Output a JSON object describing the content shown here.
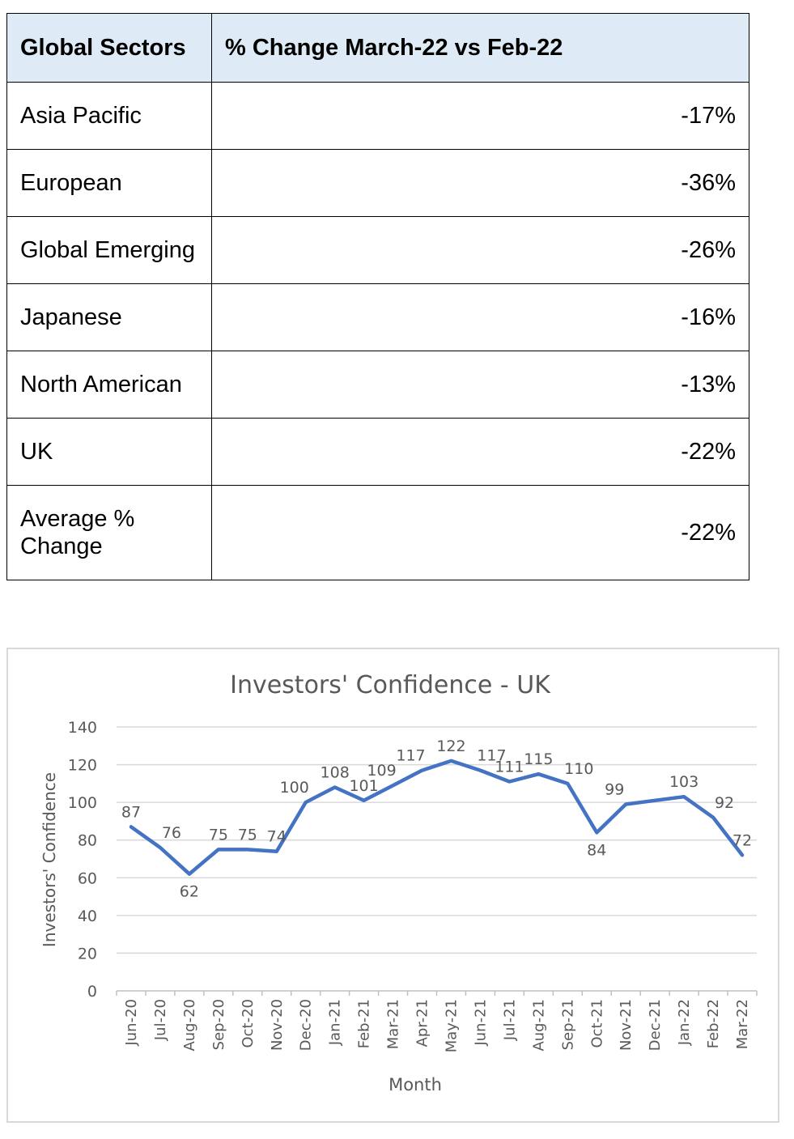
{
  "table": {
    "headers": [
      "Global Sectors",
      "% Change March-22 vs Feb-22"
    ],
    "rows": [
      {
        "sector": "Asia Pacific",
        "change": "-17%"
      },
      {
        "sector": "European",
        "change": "-36%"
      },
      {
        "sector": "Global Emerging",
        "change": "-26%"
      },
      {
        "sector": "Japanese",
        "change": "-16%"
      },
      {
        "sector": "North American",
        "change": "-13%"
      },
      {
        "sector": "UK",
        "change": "-22%"
      },
      {
        "sector": "Average % Change",
        "change": "-22%"
      }
    ]
  },
  "chart_data": {
    "type": "line",
    "title": "Investors' Confidence - UK",
    "xlabel": "Month",
    "ylabel": "Investors' Confidence",
    "ylim": [
      0,
      140
    ],
    "yticks": [
      0,
      20,
      40,
      60,
      80,
      100,
      120,
      140
    ],
    "grid": true,
    "categories": [
      "Jun-20",
      "Jul-20",
      "Aug-20",
      "Sep-20",
      "Oct-20",
      "Nov-20",
      "Dec-20",
      "Jan-21",
      "Feb-21",
      "Mar-21",
      "Apr-21",
      "May-21",
      "Jun-21",
      "Jul-21",
      "Aug-21",
      "Sep-21",
      "Oct-21",
      "Nov-21",
      "Dec-21",
      "Jan-22",
      "Feb-22",
      "Mar-22"
    ],
    "series": [
      {
        "values": [
          87,
          76,
          62,
          75,
          75,
          74,
          100,
          108,
          101,
          109,
          117,
          122,
          117,
          111,
          115,
          110,
          84,
          99,
          null,
          103,
          92,
          72
        ],
        "path_values": [
          87,
          76,
          62,
          75,
          75,
          74,
          100,
          108,
          101,
          109,
          117,
          122,
          117,
          111,
          115,
          110,
          84,
          99,
          101,
          103,
          92,
          72
        ],
        "color": "#4472c4"
      }
    ]
  }
}
